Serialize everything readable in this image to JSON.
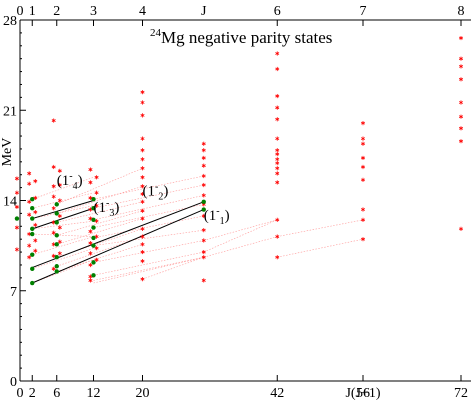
{
  "chart_data": {
    "type": "scatter",
    "title": {
      "mass_number": "24",
      "text": "Mg negative parity states"
    },
    "ylabel": "MeV",
    "ylim": [
      0,
      28
    ],
    "y_ticks": [
      0,
      7,
      14,
      21,
      28
    ],
    "y_minor_step": 1,
    "xlim": [
      0,
      72
    ],
    "x_bottom_axis": {
      "label": "J(J+1)",
      "label_at": 56,
      "ticks": [
        {
          "value": 0,
          "label": "0"
        },
        {
          "value": 2,
          "label": "2"
        },
        {
          "value": 6,
          "label": "6"
        },
        {
          "value": 12,
          "label": "12"
        },
        {
          "value": 20,
          "label": "20"
        },
        {
          "value": 42,
          "label": "42"
        },
        {
          "value": 56,
          "label": "56"
        },
        {
          "value": 72,
          "label": "72"
        }
      ]
    },
    "x_top_axis": {
      "label": "J",
      "label_at": 30,
      "ticks": [
        {
          "value": 0,
          "label": "0"
        },
        {
          "value": 2,
          "label": "1"
        },
        {
          "value": 6,
          "label": "2"
        },
        {
          "value": 12,
          "label": "3"
        },
        {
          "value": 20,
          "label": "4"
        },
        {
          "value": 42,
          "label": "6"
        },
        {
          "value": 56,
          "label": "7"
        },
        {
          "value": 72,
          "label": "8"
        }
      ]
    },
    "colors": {
      "states": "#ff0000",
      "band_points": "#008000",
      "band_lines": "#000000",
      "connectors": "#ff9999",
      "axes": "#000000"
    },
    "series": [
      {
        "marker": "star",
        "points": [
          {
            "x": -0.5,
            "y": 15.7
          },
          {
            "x": -0.5,
            "y": 14.6
          },
          {
            "x": -0.5,
            "y": 13.5
          },
          {
            "x": -0.5,
            "y": 11.9
          },
          {
            "x": -0.5,
            "y": 10.2
          },
          {
            "x": 1.5,
            "y": 16.1
          },
          {
            "x": 1.5,
            "y": 15.3
          },
          {
            "x": 1.5,
            "y": 13.9
          },
          {
            "x": 1.5,
            "y": 12.9
          },
          {
            "x": 1.5,
            "y": 11.4
          },
          {
            "x": 1.5,
            "y": 10.5
          },
          {
            "x": 1.5,
            "y": 9.6
          },
          {
            "x": 2.5,
            "y": 15.5
          },
          {
            "x": 2.5,
            "y": 14.2
          },
          {
            "x": 2.5,
            "y": 13.1
          },
          {
            "x": 2.5,
            "y": 12.1
          },
          {
            "x": 2.5,
            "y": 10.9
          },
          {
            "x": 2.5,
            "y": 10.1
          },
          {
            "x": 5.5,
            "y": 20.2
          },
          {
            "x": 5.5,
            "y": 16.6
          },
          {
            "x": 5.5,
            "y": 15.1
          },
          {
            "x": 5.5,
            "y": 14.3
          },
          {
            "x": 5.5,
            "y": 13.4
          },
          {
            "x": 5.5,
            "y": 12.3
          },
          {
            "x": 5.5,
            "y": 11.5
          },
          {
            "x": 5.5,
            "y": 10.6
          },
          {
            "x": 5.5,
            "y": 9.7
          },
          {
            "x": 5.5,
            "y": 8.7
          },
          {
            "x": 6.5,
            "y": 16.3
          },
          {
            "x": 6.5,
            "y": 15.2
          },
          {
            "x": 6.5,
            "y": 14.0
          },
          {
            "x": 6.5,
            "y": 12.8
          },
          {
            "x": 6.5,
            "y": 11.9
          },
          {
            "x": 6.5,
            "y": 10.8
          },
          {
            "x": 6.5,
            "y": 9.9
          },
          {
            "x": 11.5,
            "y": 16.4
          },
          {
            "x": 11.5,
            "y": 15.4
          },
          {
            "x": 11.5,
            "y": 14.2
          },
          {
            "x": 11.5,
            "y": 13.3
          },
          {
            "x": 11.5,
            "y": 12.6
          },
          {
            "x": 11.5,
            "y": 11.6
          },
          {
            "x": 11.5,
            "y": 10.7
          },
          {
            "x": 11.5,
            "y": 9.9
          },
          {
            "x": 11.5,
            "y": 9.0
          },
          {
            "x": 11.5,
            "y": 8.1
          },
          {
            "x": 11.5,
            "y": 7.8
          },
          {
            "x": 12.5,
            "y": 15.8
          },
          {
            "x": 12.5,
            "y": 14.6
          },
          {
            "x": 12.5,
            "y": 13.6
          },
          {
            "x": 12.5,
            "y": 12.4
          },
          {
            "x": 12.5,
            "y": 11.2
          },
          {
            "x": 12.5,
            "y": 10.3
          },
          {
            "x": 12.5,
            "y": 9.4
          },
          {
            "x": 20,
            "y": 22.4
          },
          {
            "x": 20,
            "y": 21.6
          },
          {
            "x": 20,
            "y": 20.6
          },
          {
            "x": 20,
            "y": 18.8
          },
          {
            "x": 20,
            "y": 17.9
          },
          {
            "x": 20,
            "y": 17.2
          },
          {
            "x": 20,
            "y": 16.5
          },
          {
            "x": 20,
            "y": 15.8
          },
          {
            "x": 20,
            "y": 15.1
          },
          {
            "x": 20,
            "y": 14.5
          },
          {
            "x": 20,
            "y": 13.9
          },
          {
            "x": 20,
            "y": 13.2
          },
          {
            "x": 20,
            "y": 12.6
          },
          {
            "x": 20,
            "y": 11.8
          },
          {
            "x": 20,
            "y": 11.2
          },
          {
            "x": 20,
            "y": 10.6
          },
          {
            "x": 20,
            "y": 10.0
          },
          {
            "x": 20,
            "y": 9.3
          },
          {
            "x": 20,
            "y": 7.9
          },
          {
            "x": 30,
            "y": 18.4
          },
          {
            "x": 30,
            "y": 17.9
          },
          {
            "x": 30,
            "y": 17.3
          },
          {
            "x": 30,
            "y": 16.7
          },
          {
            "x": 30,
            "y": 15.9
          },
          {
            "x": 30,
            "y": 15.2
          },
          {
            "x": 30,
            "y": 14.4
          },
          {
            "x": 30,
            "y": 13.7
          },
          {
            "x": 30,
            "y": 12.8
          },
          {
            "x": 30,
            "y": 11.7
          },
          {
            "x": 30,
            "y": 10.9
          },
          {
            "x": 30,
            "y": 10.0
          },
          {
            "x": 30,
            "y": 9.6
          },
          {
            "x": 30,
            "y": 7.8
          },
          {
            "x": 42,
            "y": 25.4
          },
          {
            "x": 42,
            "y": 24.2
          },
          {
            "x": 42,
            "y": 22.1
          },
          {
            "x": 42,
            "y": 21.2
          },
          {
            "x": 42,
            "y": 20.3
          },
          {
            "x": 42,
            "y": 18.8
          },
          {
            "x": 42,
            "y": 17.9
          },
          {
            "x": 42,
            "y": 17.6
          },
          {
            "x": 42,
            "y": 17.2
          },
          {
            "x": 42,
            "y": 16.9
          },
          {
            "x": 42,
            "y": 16.5
          },
          {
            "x": 42,
            "y": 16.1
          },
          {
            "x": 42,
            "y": 15.4
          },
          {
            "x": 42,
            "y": 12.5
          },
          {
            "x": 42,
            "y": 11.2
          },
          {
            "x": 42,
            "y": 9.6
          },
          {
            "x": 56,
            "y": 20.0
          },
          {
            "x": 56,
            "y": 18.8
          },
          {
            "x": 56,
            "y": 18.4
          },
          {
            "x": 56,
            "y": 17.3
          },
          {
            "x": 56,
            "y": 16.6
          },
          {
            "x": 56,
            "y": 15.6
          },
          {
            "x": 56,
            "y": 13.3
          },
          {
            "x": 56,
            "y": 12.5
          },
          {
            "x": 56,
            "y": 11.0
          },
          {
            "x": 72,
            "y": 26.6
          },
          {
            "x": 72,
            "y": 25.0
          },
          {
            "x": 72,
            "y": 24.4
          },
          {
            "x": 72,
            "y": 23.4
          },
          {
            "x": 72,
            "y": 21.6
          },
          {
            "x": 72,
            "y": 20.5
          },
          {
            "x": 72,
            "y": 19.6
          },
          {
            "x": 72,
            "y": 18.6
          },
          {
            "x": 72,
            "y": 11.8
          }
        ]
      },
      {
        "marker": "dot",
        "points": [
          {
            "x": -0.5,
            "y": 12.6
          },
          {
            "x": 2,
            "y": 14.1
          },
          {
            "x": 2,
            "y": 13.4
          },
          {
            "x": 2,
            "y": 12.6
          },
          {
            "x": 2,
            "y": 11.8
          },
          {
            "x": 2,
            "y": 11.4
          },
          {
            "x": 2,
            "y": 9.8
          },
          {
            "x": 2,
            "y": 8.7
          },
          {
            "x": 2,
            "y": 7.6
          },
          {
            "x": 6,
            "y": 13.7
          },
          {
            "x": 6,
            "y": 13.0
          },
          {
            "x": 6,
            "y": 12.3
          },
          {
            "x": 6,
            "y": 11.3
          },
          {
            "x": 6,
            "y": 10.6
          },
          {
            "x": 6,
            "y": 9.6
          },
          {
            "x": 6,
            "y": 8.9
          },
          {
            "x": 6,
            "y": 8.5
          },
          {
            "x": 12,
            "y": 14.1
          },
          {
            "x": 12,
            "y": 13.4
          },
          {
            "x": 12,
            "y": 12.5
          },
          {
            "x": 12,
            "y": 11.9
          },
          {
            "x": 12,
            "y": 11.1
          },
          {
            "x": 12,
            "y": 10.5
          },
          {
            "x": 12,
            "y": 9.2
          },
          {
            "x": 12,
            "y": 8.2
          },
          {
            "x": 30,
            "y": 13.9
          },
          {
            "x": 30,
            "y": 13.3
          }
        ]
      }
    ],
    "bands": [
      {
        "label_base": "1",
        "label_sup": "-",
        "label_sub": "4",
        "label_at": [
          6,
          15.2
        ],
        "x": [
          2,
          12
        ],
        "y": [
          12.6,
          14.0
        ]
      },
      {
        "label_base": "1",
        "label_sup": "-",
        "label_sub": "3",
        "label_at": [
          12,
          13.1
        ],
        "x": [
          2,
          12
        ],
        "y": [
          11.8,
          13.4
        ]
      },
      {
        "label_base": "1",
        "label_sup": "-",
        "label_sub": "2",
        "label_at": [
          20,
          14.4
        ],
        "x": [
          2,
          30
        ],
        "y": [
          8.8,
          13.9
        ]
      },
      {
        "label_base": "1",
        "label_sup": "-",
        "label_sub": "1",
        "label_at": [
          30,
          12.5
        ],
        "x": [
          2,
          30
        ],
        "y": [
          7.6,
          13.3
        ]
      }
    ],
    "connectors": [
      [
        [
          2,
          14.1
        ],
        [
          12,
          15.8
        ]
      ],
      [
        [
          2,
          13.4
        ],
        [
          12,
          14.6
        ]
      ],
      [
        [
          2,
          12.6
        ],
        [
          12,
          13.6
        ]
      ],
      [
        [
          2,
          11.8
        ],
        [
          12,
          12.4
        ]
      ],
      [
        [
          2,
          11.4
        ],
        [
          12,
          11.2
        ]
      ],
      [
        [
          2,
          9.8
        ],
        [
          12,
          11.2
        ]
      ],
      [
        [
          2,
          8.7
        ],
        [
          12,
          10.3
        ]
      ],
      [
        [
          2,
          7.6
        ],
        [
          12,
          9.4
        ]
      ],
      [
        [
          6,
          13.7
        ],
        [
          20,
          16.5
        ]
      ],
      [
        [
          6,
          13.0
        ],
        [
          20,
          15.1
        ]
      ],
      [
        [
          6,
          12.3
        ],
        [
          20,
          13.9
        ]
      ],
      [
        [
          6,
          11.3
        ],
        [
          20,
          13.2
        ]
      ],
      [
        [
          6,
          10.6
        ],
        [
          20,
          12.6
        ]
      ],
      [
        [
          6,
          9.6
        ],
        [
          20,
          11.8
        ]
      ],
      [
        [
          6,
          8.9
        ],
        [
          20,
          11.2
        ]
      ],
      [
        [
          6,
          8.5
        ],
        [
          20,
          10.6
        ]
      ],
      [
        [
          12,
          14.1
        ],
        [
          30,
          15.9
        ]
      ],
      [
        [
          12,
          13.4
        ],
        [
          30,
          15.2
        ]
      ],
      [
        [
          12,
          12.5
        ],
        [
          30,
          14.4
        ]
      ],
      [
        [
          12,
          11.9
        ],
        [
          30,
          13.7
        ]
      ],
      [
        [
          12,
          11.1
        ],
        [
          30,
          12.8
        ]
      ],
      [
        [
          12,
          10.5
        ],
        [
          30,
          11.7
        ]
      ],
      [
        [
          12,
          9.2
        ],
        [
          30,
          10.9
        ]
      ],
      [
        [
          12,
          8.2
        ],
        [
          30,
          10.0
        ]
      ],
      [
        [
          12,
          7.8
        ],
        [
          30,
          9.6
        ]
      ],
      [
        [
          12,
          7.6
        ],
        [
          30,
          9.6
        ]
      ],
      [
        [
          20,
          7.9
        ],
        [
          30,
          9.6
        ]
      ],
      [
        [
          30,
          9.6
        ],
        [
          42,
          11.2
        ]
      ],
      [
        [
          30,
          10.0
        ],
        [
          42,
          12.5
        ]
      ],
      [
        [
          42,
          11.2
        ],
        [
          56,
          12.5
        ]
      ],
      [
        [
          42,
          9.6
        ],
        [
          56,
          11.0
        ]
      ],
      [
        [
          30,
          10.9
        ],
        [
          42,
          12.5
        ]
      ]
    ]
  }
}
